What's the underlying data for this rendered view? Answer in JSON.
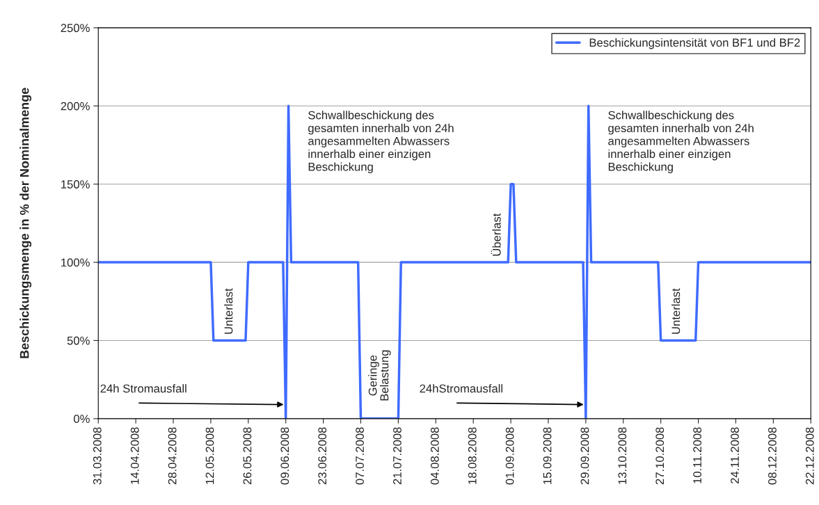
{
  "chart_data": {
    "type": "line",
    "ylabel": "Beschickungsmenge in % der Nominalmenge",
    "x": [
      "2008-03-31",
      "2008-05-12",
      "2008-05-13",
      "2008-05-25",
      "2008-05-26",
      "2008-06-08",
      "2008-06-09",
      "2008-06-10",
      "2008-06-11",
      "2008-07-06",
      "2008-07-07",
      "2008-07-21",
      "2008-07-22",
      "2008-08-31",
      "2008-09-01",
      "2008-09-02",
      "2008-09-03",
      "2008-09-28",
      "2008-09-29",
      "2008-09-30",
      "2008-10-01",
      "2008-10-26",
      "2008-10-27",
      "2008-11-09",
      "2008-11-10",
      "2008-12-22"
    ],
    "series": [
      {
        "name": "Beschickungsintensität von BF1 und BF2",
        "color": "#3f6bff",
        "values": [
          100,
          100,
          50,
          50,
          100,
          100,
          0,
          200,
          100,
          100,
          0,
          0,
          100,
          100,
          150,
          150,
          100,
          100,
          0,
          200,
          100,
          100,
          50,
          50,
          100,
          100
        ]
      }
    ],
    "xlim": [
      "2008-03-31",
      "2008-12-22"
    ],
    "xticks": [
      {
        "value": "2008-03-31",
        "label": "31.03.2008"
      },
      {
        "value": "2008-04-14",
        "label": "14.04.2008"
      },
      {
        "value": "2008-04-28",
        "label": "28.04.2008"
      },
      {
        "value": "2008-05-12",
        "label": "12.05.2008"
      },
      {
        "value": "2008-05-26",
        "label": "26.05.2008"
      },
      {
        "value": "2008-06-09",
        "label": "09.06.2008"
      },
      {
        "value": "2008-06-23",
        "label": "23.06.2008"
      },
      {
        "value": "2008-07-07",
        "label": "07.07.2008"
      },
      {
        "value": "2008-07-21",
        "label": "21.07.2008"
      },
      {
        "value": "2008-08-04",
        "label": "04.08.2008"
      },
      {
        "value": "2008-08-18",
        "label": "18.08.2008"
      },
      {
        "value": "2008-09-01",
        "label": "01.09.2008"
      },
      {
        "value": "2008-09-15",
        "label": "15.09.2008"
      },
      {
        "value": "2008-09-29",
        "label": "29.09.2008"
      },
      {
        "value": "2008-10-13",
        "label": "13.10.2008"
      },
      {
        "value": "2008-10-27",
        "label": "27.10.2008"
      },
      {
        "value": "2008-11-10",
        "label": "10.11.2008"
      },
      {
        "value": "2008-11-24",
        "label": "24.11.2008"
      },
      {
        "value": "2008-12-08",
        "label": "08.12.2008"
      },
      {
        "value": "2008-12-22",
        "label": "22.12.2008"
      }
    ],
    "ylim": [
      0,
      250
    ],
    "yticks": [
      {
        "value": 0,
        "label": "0%"
      },
      {
        "value": 50,
        "label": "50%"
      },
      {
        "value": 100,
        "label": "100%"
      },
      {
        "value": 150,
        "label": "150%"
      },
      {
        "value": 200,
        "label": "200%"
      },
      {
        "value": 250,
        "label": "250%"
      }
    ],
    "grid": "y",
    "legend": "top right",
    "marker": "none",
    "line_style": "solid",
    "annotations": [
      {
        "text": "Unterlast",
        "x": "2008-05-19",
        "y": 50
      },
      {
        "text": "24h Stromausfall",
        "x": "2008-06-09",
        "y": 9
      },
      {
        "text": "Schwallbeschickung des\ngesamten innerhalb von 24h\nangesammelten Abwassers\ninnerhalb einer einzigen\nBeschickung",
        "x": "2008-06-10",
        "y": 200
      },
      {
        "text": "Geringe\nBelastung",
        "x": "2008-07-14",
        "y": 0
      },
      {
        "text": "Überlast",
        "x": "2008-09-01",
        "y": 100
      },
      {
        "text": "24hStromausfall",
        "x": "2008-09-29",
        "y": 9
      },
      {
        "text": "Schwallbeschickung des\ngesamten innerhalb von 24h\nangesammelten Abwassers\ninnerhalb einer einzigen\nBeschickung",
        "x": "2008-09-30",
        "y": 200
      },
      {
        "text": "Unterlast",
        "x": "2008-11-02",
        "y": 50
      }
    ]
  }
}
